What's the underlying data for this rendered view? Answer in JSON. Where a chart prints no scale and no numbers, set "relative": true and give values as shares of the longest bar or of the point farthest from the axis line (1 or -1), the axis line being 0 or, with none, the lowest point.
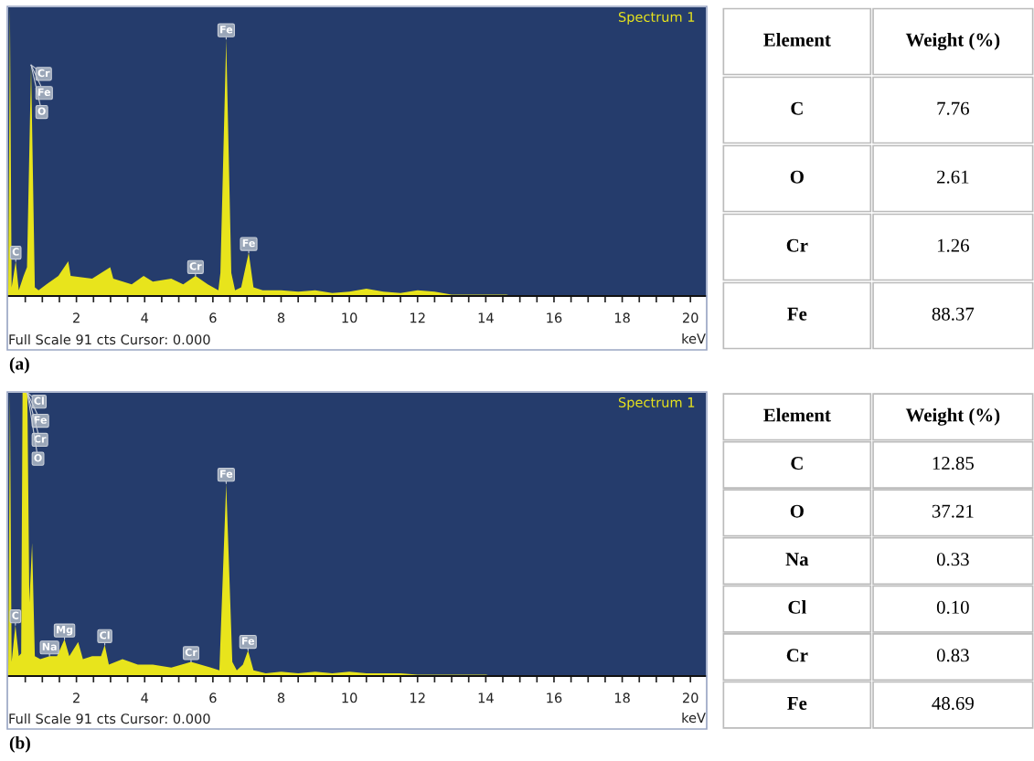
{
  "chart_data": [
    {
      "type": "area",
      "title": "Spectrum 1",
      "xlabel": "keV",
      "relative": true,
      "xlim": [
        0,
        20.45
      ],
      "xticks": [
        {
          "value": 0.5,
          "label": null
        },
        {
          "value": 1,
          "label": null
        },
        {
          "value": 1.5,
          "label": null
        },
        2,
        {
          "value": 2.5,
          "label": null
        },
        {
          "value": 3,
          "label": null
        },
        {
          "value": 3.5,
          "label": null
        },
        4,
        {
          "value": 4.5,
          "label": null
        },
        {
          "value": 5,
          "label": null
        },
        {
          "value": 5.5,
          "label": null
        },
        6,
        {
          "value": 6.5,
          "label": null
        },
        {
          "value": 7,
          "label": null
        },
        {
          "value": 7.5,
          "label": null
        },
        8,
        {
          "value": 8.5,
          "label": null
        },
        {
          "value": 9,
          "label": null
        },
        {
          "value": 9.5,
          "label": null
        },
        10,
        {
          "value": 10.5,
          "label": null
        },
        {
          "value": 11,
          "label": null
        },
        {
          "value": 11.5,
          "label": null
        },
        12,
        {
          "value": 12.5,
          "label": null
        },
        {
          "value": 13,
          "label": null
        },
        {
          "value": 13.5,
          "label": null
        },
        14,
        {
          "value": 14.5,
          "label": null
        },
        {
          "value": 15,
          "label": null
        },
        {
          "value": 15.5,
          "label": null
        },
        16,
        {
          "value": 16.5,
          "label": null
        },
        {
          "value": 17,
          "label": null
        },
        {
          "value": 17.5,
          "label": null
        },
        18,
        {
          "value": 18.5,
          "label": null
        },
        {
          "value": 19,
          "label": null
        },
        {
          "value": 19.5,
          "label": null
        },
        20
      ],
      "series": [
        {
          "color": "#e8e41c",
          "x": [
            0,
            0.05,
            0.1,
            0.22,
            0.31,
            0.45,
            0.55,
            0.67,
            0.78,
            0.89,
            1.12,
            1.47,
            1.76,
            1.83,
            2.46,
            2.99,
            3.08,
            3.62,
            3.97,
            4.24,
            4.78,
            5.13,
            5.49,
            5.85,
            6.16,
            6.22,
            6.39,
            6.54,
            6.65,
            6.83,
            7.05,
            7.19,
            7.46,
            8.0,
            8.5,
            9.0,
            9.5,
            10.0,
            10.5,
            11.0,
            11.5,
            12.0,
            12.5,
            13.0,
            13.5,
            14.0,
            14.6,
            14.8
          ],
          "values": [
            0,
            1,
            0.03,
            0.12,
            0.02,
            0.07,
            0.1,
            0.8,
            0.03,
            0.02,
            0.04,
            0.07,
            0.12,
            0.07,
            0.06,
            0.1,
            0.06,
            0.04,
            0.07,
            0.05,
            0.06,
            0.04,
            0.07,
            0.04,
            0.02,
            0.08,
            0.89,
            0.08,
            0.02,
            0.03,
            0.15,
            0.03,
            0.02,
            0.02,
            0.015,
            0.02,
            0.01,
            0.015,
            0.025,
            0.015,
            0.01,
            0.02,
            0.015,
            0.005,
            0.005,
            0.005,
            0.005,
            0
          ]
        }
      ],
      "annotations": [
        {
          "text": "Cr",
          "x": 0.67,
          "y": 0.8
        },
        {
          "text": "Fe",
          "x": 0.67,
          "y": 0.8
        },
        {
          "text": "O",
          "x": 0.67,
          "y": 0.8
        },
        {
          "text": "C",
          "x": 0.22,
          "y": 0.12
        },
        {
          "text": "Cr",
          "x": 5.49,
          "y": 0.07
        },
        {
          "text": "Fe",
          "x": 6.39,
          "y": 0.89
        },
        {
          "text": "Fe",
          "x": 7.05,
          "y": 0.15
        },
        "Full Scale 91 cts Cursor: 0.000",
        "(a)"
      ]
    },
    {
      "type": "other",
      "xlabel": "Element",
      "ylabel": "Weight (%)",
      "categories": [
        "C",
        "O",
        "Cr",
        "Fe"
      ],
      "value_labels": [
        "7.76",
        "2.61",
        "1.26",
        "88.37"
      ]
    },
    {
      "type": "area",
      "title": "Spectrum 1",
      "xlabel": "keV",
      "relative": true,
      "xlim": [
        0,
        20.45
      ],
      "xticks": [
        {
          "value": 0.5,
          "label": null
        },
        {
          "value": 1,
          "label": null
        },
        {
          "value": 1.5,
          "label": null
        },
        2,
        {
          "value": 2.5,
          "label": null
        },
        {
          "value": 3,
          "label": null
        },
        {
          "value": 3.5,
          "label": null
        },
        4,
        {
          "value": 4.5,
          "label": null
        },
        {
          "value": 5,
          "label": null
        },
        {
          "value": 5.5,
          "label": null
        },
        6,
        {
          "value": 6.5,
          "label": null
        },
        {
          "value": 7,
          "label": null
        },
        {
          "value": 7.5,
          "label": null
        },
        8,
        {
          "value": 8.5,
          "label": null
        },
        {
          "value": 9,
          "label": null
        },
        {
          "value": 9.5,
          "label": null
        },
        10,
        {
          "value": 10.5,
          "label": null
        },
        {
          "value": 11,
          "label": null
        },
        {
          "value": 11.5,
          "label": null
        },
        12,
        {
          "value": 12.5,
          "label": null
        },
        {
          "value": 13,
          "label": null
        },
        {
          "value": 13.5,
          "label": null
        },
        14,
        {
          "value": 14.5,
          "label": null
        },
        {
          "value": 15,
          "label": null
        },
        {
          "value": 15.5,
          "label": null
        },
        16,
        {
          "value": 16.5,
          "label": null
        },
        {
          "value": 17,
          "label": null
        },
        {
          "value": 17.5,
          "label": null
        },
        18,
        {
          "value": 18.5,
          "label": null
        },
        {
          "value": 19,
          "label": null
        },
        {
          "value": 19.5,
          "label": null
        },
        20
      ],
      "series": [
        {
          "color": "#e8e41c",
          "x": [
            0,
            0.05,
            0.1,
            0.21,
            0.31,
            0.38,
            0.42,
            0.49,
            0.56,
            0.62,
            0.7,
            0.78,
            0.94,
            1.21,
            1.43,
            1.65,
            1.79,
            2.05,
            2.19,
            2.46,
            2.72,
            2.83,
            2.95,
            3.35,
            3.8,
            4.24,
            4.78,
            5.36,
            5.94,
            6.19,
            6.39,
            6.57,
            6.7,
            6.88,
            7.03,
            7.19,
            7.55,
            8.0,
            8.5,
            9.0,
            9.5,
            10.0,
            10.5,
            11.0,
            11.5,
            12.0,
            12.5,
            13.0,
            13.5,
            14.0,
            14.2
          ],
          "values": [
            0,
            1,
            0.05,
            0.18,
            0.07,
            0.08,
            1,
            1,
            1,
            0.26,
            0.47,
            0.07,
            0.06,
            0.07,
            0.07,
            0.13,
            0.07,
            0.12,
            0.06,
            0.07,
            0.07,
            0.11,
            0.04,
            0.06,
            0.04,
            0.04,
            0.03,
            0.05,
            0.03,
            0.02,
            0.68,
            0.05,
            0.02,
            0.04,
            0.09,
            0.02,
            0.01,
            0.015,
            0.01,
            0.015,
            0.01,
            0.015,
            0.01,
            0.01,
            0.01,
            0.005,
            0.005,
            0.005,
            0.005,
            0.005,
            0
          ]
        }
      ],
      "annotations": [
        {
          "text": "Cl",
          "x": 0.56,
          "y": 1
        },
        {
          "text": "Fe",
          "x": 0.56,
          "y": 1
        },
        {
          "text": "Cr",
          "x": 0.56,
          "y": 1
        },
        {
          "text": "O",
          "x": 0.56,
          "y": 1
        },
        {
          "text": "C",
          "x": 0.21,
          "y": 0.18
        },
        {
          "text": "Na",
          "x": 1.21,
          "y": 0.07
        },
        {
          "text": "Mg",
          "x": 1.65,
          "y": 0.13
        },
        {
          "text": "Cl",
          "x": 2.83,
          "y": 0.11
        },
        {
          "text": "Cr",
          "x": 5.36,
          "y": 0.05
        },
        {
          "text": "Fe",
          "x": 6.39,
          "y": 0.68
        },
        {
          "text": "Fe",
          "x": 7.03,
          "y": 0.09
        },
        "Full Scale 91 cts Cursor: 0.000",
        "(b)"
      ]
    },
    {
      "type": "other",
      "xlabel": "Element",
      "ylabel": "Weight (%)",
      "categories": [
        "C",
        "O",
        "Na",
        "Cl",
        "Cr",
        "Fe"
      ],
      "value_labels": [
        "12.85",
        "37.21",
        "0.33",
        "0.10",
        "0.83",
        "48.69"
      ]
    }
  ]
}
